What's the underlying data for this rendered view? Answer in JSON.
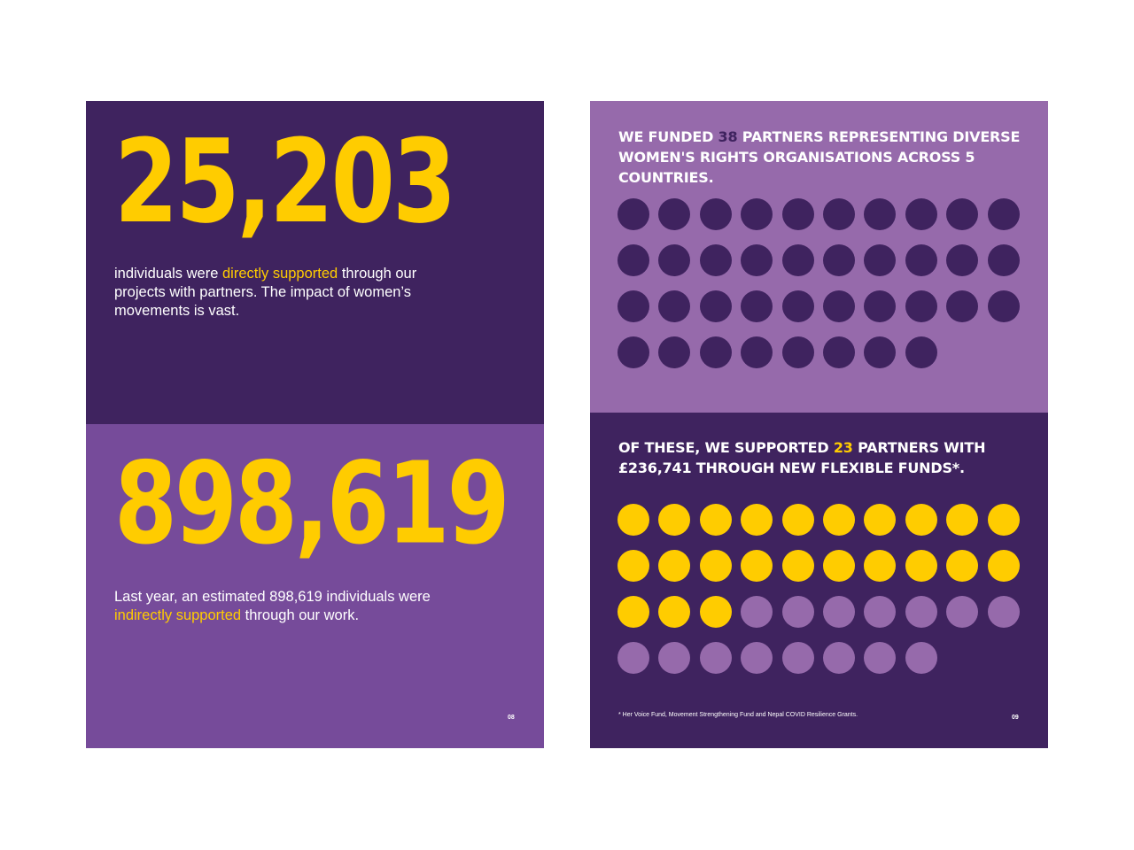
{
  "left_page": {
    "stat_1": {
      "number": "25,203",
      "text_before": "individuals were ",
      "highlight": "directly supported",
      "text_after": " through our projects with partners. The impact of women’s movements is vast."
    },
    "stat_2": {
      "number": "898,619",
      "text_before": "Last year, an estimated 898,619 individuals were ",
      "highlight": "indirectly supported",
      "text_after": " through our work."
    },
    "page_number": "08"
  },
  "right_page": {
    "section_1": {
      "heading_before": "We funded ",
      "heading_number": "38",
      "heading_after": " partners representing diverse women's rights organisations across 5 countries.",
      "dots": {
        "total": 38,
        "highlighted": 38,
        "per_row": 10,
        "color": "#3f235f",
        "highlight_color": "#3f235f"
      }
    },
    "section_2": {
      "heading_before": "Of these, we supported ",
      "heading_number": "23",
      "heading_after": " partners with £236,741 through new flexible funds*.",
      "dots": {
        "total": 38,
        "highlighted": 23,
        "per_row": 10,
        "color": "#966aab",
        "highlight_color": "#ffcc00"
      }
    },
    "footnote": "* Her Voice Fund, Movement Strengthening Fund and Nepal COVID Resilience Grants.",
    "page_number": "09"
  },
  "colors": {
    "dark_purple": "#3f235f",
    "mid_purple": "#764b9a",
    "light_purple": "#966aab",
    "yellow": "#ffcc00"
  }
}
